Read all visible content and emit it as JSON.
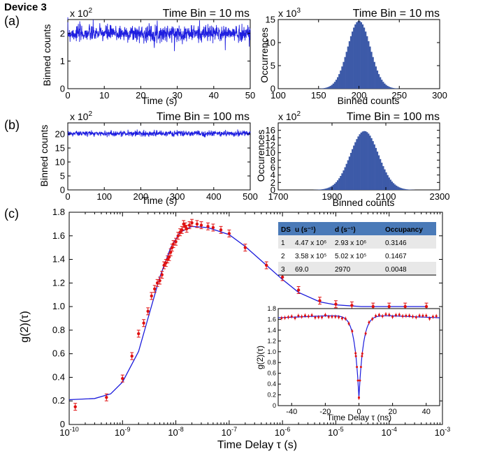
{
  "header": {
    "device": "Device 3"
  },
  "panel_labels": {
    "a": "(a)",
    "b": "(b)",
    "c": "(c)"
  },
  "colors": {
    "trace": "#1f1fe0",
    "hist": "#3d5aa8",
    "points": "#e01010",
    "fit": "#1a1adc",
    "table_header": "#4a7ab8"
  },
  "chart_data": [
    {
      "id": "a-time",
      "type": "line",
      "title": "Time Bin = 10 ms",
      "multiplier": "x 10",
      "multiplier_exp": "2",
      "xlabel": "Time (s)",
      "ylabel": "Binned counts",
      "xlim": [
        0,
        50
      ],
      "ylim": [
        0,
        2.5
      ],
      "xticks": [
        "0",
        "10",
        "20",
        "30",
        "40",
        "50"
      ],
      "yticks": [
        "0",
        "1",
        "2"
      ],
      "series": [
        {
          "mean": 2.0,
          "noise": 0.3
        }
      ]
    },
    {
      "id": "a-hist",
      "type": "bar",
      "title": "Time Bin = 10 ms",
      "multiplier": "x 10",
      "multiplier_exp": "3",
      "xlabel": "Binned counts",
      "ylabel": "Occurrences",
      "xlim": [
        100,
        300
      ],
      "ylim": [
        0,
        15
      ],
      "xticks": [
        "100",
        "150",
        "200",
        "250",
        "300"
      ],
      "yticks": [
        "0",
        "5",
        "10",
        "15"
      ],
      "series": [
        {
          "center": 200,
          "sigma": 14,
          "peak": 14.7
        }
      ]
    },
    {
      "id": "b-time",
      "type": "line",
      "title": "Time Bin = 100 ms",
      "multiplier": "x 10",
      "multiplier_exp": "2",
      "xlabel": "Time (s)",
      "ylabel": "Binned counts",
      "xlim": [
        0,
        500
      ],
      "ylim": [
        0,
        24
      ],
      "xticks": [
        "0",
        "100",
        "200",
        "300",
        "400",
        "500"
      ],
      "yticks": [
        "0",
        "5",
        "10",
        "15",
        "20"
      ],
      "series": [
        {
          "mean": 20.2,
          "noise": 1.0
        }
      ]
    },
    {
      "id": "b-hist",
      "type": "bar",
      "title": "Time Bin = 100 ms",
      "multiplier": "x 10",
      "multiplier_exp": "2",
      "xlabel": "Binned counts",
      "ylabel": "Occurences",
      "xlim": [
        1700,
        2300
      ],
      "ylim": [
        0,
        18
      ],
      "xticks": [
        "1700",
        "1900",
        "2100",
        "2300"
      ],
      "yticks": [
        "0",
        "2",
        "4",
        "6",
        "8",
        "10",
        "12",
        "14",
        "16"
      ],
      "series": [
        {
          "center": 2020,
          "sigma": 52,
          "peak": 15.8
        }
      ]
    },
    {
      "id": "c-main",
      "type": "scatter",
      "xlabel": "Time Delay τ (s)",
      "ylabel": "g(2)(τ)",
      "xscale": "log",
      "xlim": [
        1e-10,
        0.001
      ],
      "ylim": [
        0,
        1.8
      ],
      "xtick_exponents": [
        "-10",
        "-9",
        "-8",
        "-7",
        "-6",
        "-5",
        "-4",
        "-3"
      ],
      "yticks": [
        "0",
        "0.2",
        "0.4",
        "0.6",
        "0.8",
        "1.0",
        "1.2",
        "1.4",
        "1.6",
        "1.8"
      ],
      "series": [
        {
          "points": [
            [
              1.3e-10,
              0.15
            ],
            [
              5e-10,
              0.23
            ],
            [
              1e-09,
              0.39
            ],
            [
              1.5e-09,
              0.58
            ],
            [
              2e-09,
              0.77
            ],
            [
              2.5e-09,
              0.86
            ],
            [
              3e-09,
              0.96
            ],
            [
              3.5e-09,
              1.09
            ],
            [
              4e-09,
              1.15
            ],
            [
              4.5e-09,
              1.2
            ],
            [
              5e-09,
              1.22
            ],
            [
              5.5e-09,
              1.27
            ],
            [
              6e-09,
              1.35
            ],
            [
              6.5e-09,
              1.37
            ],
            [
              7e-09,
              1.4
            ],
            [
              7.5e-09,
              1.42
            ],
            [
              8e-09,
              1.46
            ],
            [
              8.5e-09,
              1.5
            ],
            [
              9e-09,
              1.53
            ],
            [
              1e-08,
              1.55
            ],
            [
              1.1e-08,
              1.6
            ],
            [
              1.2e-08,
              1.63
            ],
            [
              1.3e-08,
              1.65
            ],
            [
              1.4e-08,
              1.7
            ],
            [
              1.5e-08,
              1.68
            ],
            [
              1.6e-08,
              1.66
            ],
            [
              1.8e-08,
              1.69
            ],
            [
              2e-08,
              1.71
            ],
            [
              2.5e-08,
              1.7
            ],
            [
              3e-08,
              1.69
            ],
            [
              4e-08,
              1.68
            ],
            [
              5e-08,
              1.67
            ],
            [
              7e-08,
              1.65
            ],
            [
              1e-07,
              1.62
            ],
            [
              2e-07,
              1.5
            ],
            [
              5e-07,
              1.35
            ],
            [
              1e-06,
              1.25
            ],
            [
              2e-06,
              1.14
            ],
            [
              5e-06,
              1.05
            ],
            [
              1e-05,
              1.02
            ],
            [
              2e-05,
              1.01
            ],
            [
              5e-05,
              1.0
            ],
            [
              0.0001,
              1.0
            ],
            [
              0.0002,
              1.0
            ],
            [
              0.0005,
              1.0
            ]
          ]
        },
        {
          "fit": [
            [
              1e-10,
              0.21
            ],
            [
              3e-10,
              0.22
            ],
            [
              6e-10,
              0.26
            ],
            [
              1e-09,
              0.36
            ],
            [
              2e-09,
              0.62
            ],
            [
              3e-09,
              0.9
            ],
            [
              5e-09,
              1.25
            ],
            [
              8e-09,
              1.5
            ],
            [
              1.2e-08,
              1.63
            ],
            [
              2e-08,
              1.68
            ],
            [
              4e-08,
              1.67
            ],
            [
              1e-07,
              1.61
            ],
            [
              2e-07,
              1.51
            ],
            [
              5e-07,
              1.35
            ],
            [
              1e-06,
              1.23
            ],
            [
              2e-06,
              1.12
            ],
            [
              5e-06,
              1.04
            ],
            [
              1e-05,
              1.015
            ],
            [
              3e-05,
              1.0
            ],
            [
              0.0001,
              1.0
            ],
            [
              0.0005,
              1.0
            ]
          ]
        }
      ]
    },
    {
      "id": "c-inset",
      "type": "scatter",
      "xlabel": "Time Delay τ (ns)",
      "ylabel": "g(2)(τ)",
      "xlim": [
        -48,
        48
      ],
      "ylim": [
        0,
        1.8
      ],
      "xticks": [
        "-40",
        "-20",
        "0",
        "20",
        "40"
      ],
      "yticks": [
        "0",
        "0.2",
        "0.4",
        "0.6",
        "0.8",
        "1.0",
        "1.2",
        "1.4",
        "1.6",
        "1.8"
      ],
      "series": [
        {
          "baseline": 1.69,
          "min": 0.15,
          "width_ns": 2.6,
          "tail": 0.06
        }
      ]
    }
  ],
  "table": {
    "headers": [
      "DS",
      "u (s⁻¹)",
      "d (s⁻¹)",
      "Occupancy"
    ],
    "rows": [
      [
        "1",
        "4.47 x 10⁶",
        "2.93 x 10⁶",
        "0.3146"
      ],
      [
        "2",
        "3.58 x 10⁵",
        "5.02 x 10⁵",
        "0.1467"
      ],
      [
        "3",
        "69.0",
        "2970",
        "0.0048"
      ]
    ]
  }
}
